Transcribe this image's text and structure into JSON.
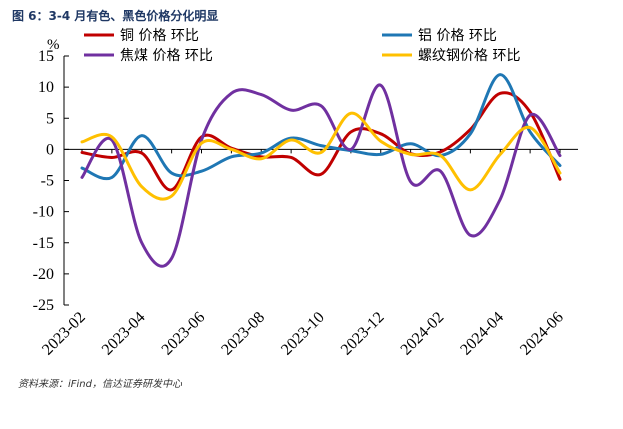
{
  "title": "图 6：3-4 月有色、黑色价格分化明显",
  "source": "资料来源：iFind，信达证券研发中心",
  "chart_data": {
    "type": "line",
    "title": "图 6：3-4 月有色、黑色价格分化明显",
    "xlabel": "",
    "ylabel": "%",
    "ylim": [
      -25,
      15
    ],
    "yticks": [
      15,
      10,
      5,
      0,
      -5,
      -10,
      -15,
      -20,
      -25
    ],
    "x": [
      "2023-02",
      "2023-03",
      "2023-04",
      "2023-05",
      "2023-06",
      "2023-07",
      "2023-08",
      "2023-09",
      "2023-10",
      "2023-11",
      "2023-12",
      "2024-01",
      "2024-02",
      "2024-03",
      "2024-04",
      "2024-05",
      "2024-06"
    ],
    "xtick_labels": [
      "2023-02",
      "2023-04",
      "2023-06",
      "2023-08",
      "2023-10",
      "2023-12",
      "2024-02",
      "2024-04",
      "2024-06"
    ],
    "legend_position": "top",
    "grid": false,
    "series": [
      {
        "name": "铜 价格 环比",
        "color": "#c00000",
        "values": [
          -0.5,
          -1.3,
          -0.6,
          -6.5,
          2.0,
          0.2,
          -1.2,
          -1.3,
          -4.0,
          2.8,
          2.5,
          -0.7,
          -0.4,
          3.2,
          9.0,
          6.0,
          -4.8
        ]
      },
      {
        "name": "铝 价格 环比",
        "color": "#1f77b4",
        "values": [
          -3.0,
          -4.5,
          2.2,
          -3.8,
          -3.5,
          -1.2,
          -0.6,
          1.8,
          0.6,
          -0.2,
          -0.8,
          0.9,
          -1.0,
          2.5,
          12.0,
          2.8,
          -2.6
        ]
      },
      {
        "name": "焦煤 价格 环比",
        "color": "#7030a0",
        "values": [
          -4.5,
          1.5,
          -15.0,
          -17.5,
          1.5,
          9.0,
          8.8,
          6.3,
          7.0,
          0.0,
          10.3,
          -5.2,
          -3.5,
          -13.8,
          -8.0,
          5.5,
          -1.0
        ]
      },
      {
        "name": "螺纹钢价格 环比",
        "color": "#ffc000",
        "values": [
          1.2,
          2.0,
          -6.0,
          -7.5,
          1.0,
          0.0,
          -1.5,
          1.5,
          -0.5,
          5.8,
          1.3,
          -0.8,
          -1.0,
          -6.5,
          -0.8,
          3.5,
          -3.8
        ]
      }
    ]
  }
}
